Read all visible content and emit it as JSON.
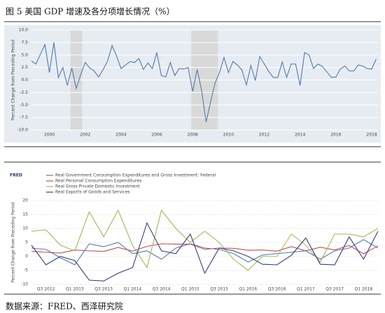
{
  "title": "图 5  美国 GDP 增速及各分项增长情况（%）",
  "source": "数据来源：FRED、西泽研究院",
  "chart_data": [
    {
      "type": "line",
      "y_label": "Percent Change from Preceding Period",
      "x": [
        1999,
        1999.25,
        1999.5,
        1999.75,
        2000,
        2000.25,
        2000.5,
        2000.75,
        2001,
        2001.25,
        2001.5,
        2001.75,
        2002,
        2002.25,
        2002.5,
        2002.75,
        2003,
        2003.25,
        2003.5,
        2003.75,
        2004,
        2004.25,
        2004.5,
        2004.75,
        2005,
        2005.25,
        2005.5,
        2005.75,
        2006,
        2006.25,
        2006.5,
        2006.75,
        2007,
        2007.25,
        2007.5,
        2007.75,
        2008,
        2008.25,
        2008.5,
        2008.75,
        2009,
        2009.25,
        2009.5,
        2009.75,
        2010,
        2010.25,
        2010.5,
        2010.75,
        2011,
        2011.25,
        2011.5,
        2011.75,
        2012,
        2012.25,
        2012.5,
        2012.75,
        2013,
        2013.25,
        2013.5,
        2013.75,
        2014,
        2014.25,
        2014.5,
        2014.75,
        2015,
        2015.25,
        2015.5,
        2015.75,
        2016,
        2016.25,
        2016.5,
        2016.75,
        2017,
        2017.25,
        2017.5,
        2017.75,
        2018,
        2018.25
      ],
      "series": [
        {
          "color": "#4f7cb0",
          "values": [
            3.8,
            3.2,
            5.2,
            7.1,
            1.5,
            7.5,
            0.5,
            2.5,
            -1.1,
            2.4,
            -1.7,
            1.1,
            3.5,
            2.4,
            1.8,
            0.6,
            2.1,
            3.8,
            6.9,
            4.8,
            2.3,
            3.0,
            3.7,
            3.5,
            4.3,
            2.1,
            3.4,
            2.3,
            5.5,
            0.9,
            0.6,
            3.5,
            0.9,
            2.3,
            2.2,
            2.5,
            -2.3,
            2.1,
            -2.1,
            -8.4,
            -4.4,
            -0.6,
            1.5,
            4.5,
            1.5,
            3.7,
            3.0,
            2.0,
            -1.0,
            2.9,
            -0.1,
            4.7,
            3.2,
            1.7,
            0.5,
            0.5,
            3.6,
            0.5,
            3.2,
            3.2,
            -1.1,
            5.5,
            5.0,
            2.3,
            3.2,
            2.7,
            1.6,
            0.5,
            0.6,
            2.2,
            2.8,
            1.8,
            1.8,
            3.0,
            2.8,
            2.3,
            2.2,
            4.2
          ]
        }
      ],
      "recessions": [
        [
          2001.17,
          2001.83
        ],
        [
          2007.92,
          2009.42
        ]
      ],
      "recession_color": "#d9d9d9",
      "xlim": [
        1999,
        2018.35
      ],
      "xticks": [
        2000,
        2002,
        2004,
        2006,
        2008,
        2010,
        2012,
        2014,
        2016,
        2018
      ],
      "ylim": [
        -10,
        10
      ],
      "yticks": [
        {
          "value": 10,
          "label": "10.0"
        },
        {
          "value": 7.5,
          "label": "7.5"
        },
        {
          "value": 5,
          "label": "5.0"
        },
        {
          "value": 2.5,
          "label": "2.5"
        },
        {
          "value": 0,
          "label": "0.0"
        },
        {
          "value": -2.5,
          "label": "-2.5"
        },
        {
          "value": -5,
          "label": "-5.0"
        },
        {
          "value": -7.5,
          "label": "-7.5"
        },
        {
          "value": -10,
          "label": "-10.0"
        }
      ],
      "grid": true,
      "background": "#e6ecf2"
    },
    {
      "type": "line",
      "logo": "FRED",
      "y_label": "Percent Change from Preceding Period",
      "categories": [
        null,
        "Q3 2012",
        null,
        "Q1 2013",
        null,
        "Q3 2013",
        null,
        "Q1 2014",
        null,
        "Q3 2014",
        null,
        "Q1 2015",
        null,
        "Q3 2015",
        null,
        "Q1 2016",
        null,
        "Q3 2016",
        null,
        "Q1 2017",
        null,
        "Q3 2017",
        null,
        "Q1 2018",
        null
      ],
      "series": [
        {
          "name": "Real Government Consumption Expenditures and Gross Investment: Federal",
          "color": "#4f7cb0",
          "values": [
            3,
            2.5,
            -0.5,
            -3,
            4.5,
            3.5,
            5,
            1,
            2,
            -1,
            3,
            4.5,
            3,
            2.5,
            1,
            -2,
            0.5,
            1,
            1.5,
            2,
            -1,
            2,
            3,
            6,
            3
          ]
        },
        {
          "name": "Real Personal Consumption Expenditures",
          "color": "#c0504d",
          "values": [
            1.8,
            1.5,
            1.2,
            2.3,
            2.0,
            1.8,
            3.2,
            1.9,
            3.6,
            4.5,
            4.4,
            4.4,
            2.5,
            3.0,
            2.9,
            2.2,
            2.3,
            1.9,
            3.5,
            2.0,
            3.3,
            2.3,
            3.9,
            0.9,
            3.8
          ]
        },
        {
          "name": "Real Gross Private Domestic Investment",
          "color": "#9bbb59",
          "values": [
            9,
            9.5,
            4,
            2,
            16,
            7,
            16.5,
            4,
            -4,
            16.5,
            10,
            5,
            9,
            5,
            -1,
            -5,
            0,
            0,
            8,
            4,
            -2,
            8,
            8,
            7,
            10
          ]
        },
        {
          "name": "Real Exports of Goods and Services",
          "color": "#3c3c7a",
          "values": [
            4,
            -3,
            0,
            -1.5,
            -8.5,
            -8.8,
            -6,
            -4,
            12,
            2,
            1,
            8,
            -6,
            3,
            2,
            0,
            -2.8,
            -3,
            0.4,
            6.6,
            -2.8,
            -3,
            7,
            -1,
            9
          ]
        }
      ],
      "ylim": [
        -10,
        20
      ],
      "yticks": [
        20,
        15,
        10,
        5,
        0,
        -5,
        -10
      ],
      "grid": true,
      "legend": "top-left"
    }
  ]
}
